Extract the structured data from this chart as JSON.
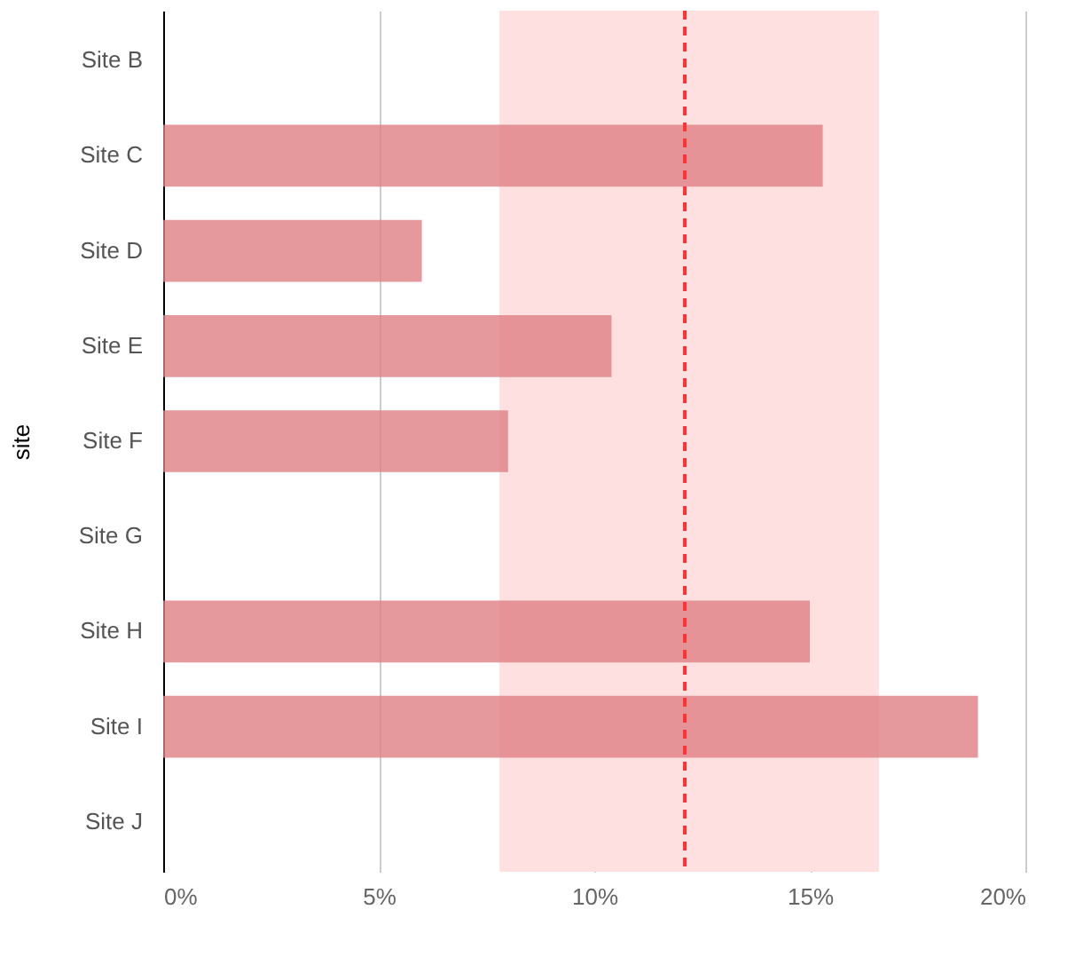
{
  "chart_data": {
    "type": "bar",
    "orientation": "horizontal",
    "ylabel": "site",
    "categories": [
      "Site B",
      "Site C",
      "Site D",
      "Site E",
      "Site F",
      "Site G",
      "Site H",
      "Site I",
      "Site J"
    ],
    "values": [
      null,
      15.3,
      6.0,
      10.4,
      8.0,
      null,
      15.0,
      18.9,
      null
    ],
    "color": "#de7f84",
    "xlim": [
      0,
      20
    ],
    "xticks": [
      {
        "value": 0,
        "label": "0%"
      },
      {
        "value": 5,
        "label": "5%"
      },
      {
        "value": 10,
        "label": "10%"
      },
      {
        "value": 15,
        "label": "15%"
      },
      {
        "value": 20,
        "label": "20%"
      }
    ],
    "grid": "x",
    "bands": [
      {
        "axis": "x",
        "from": 7.8,
        "to": 16.6,
        "color": "#ffe0e0"
      }
    ],
    "ref_lines": [
      {
        "axis": "x",
        "value": 12.1,
        "color": "#ff3333",
        "line_style": "dashed"
      }
    ]
  }
}
